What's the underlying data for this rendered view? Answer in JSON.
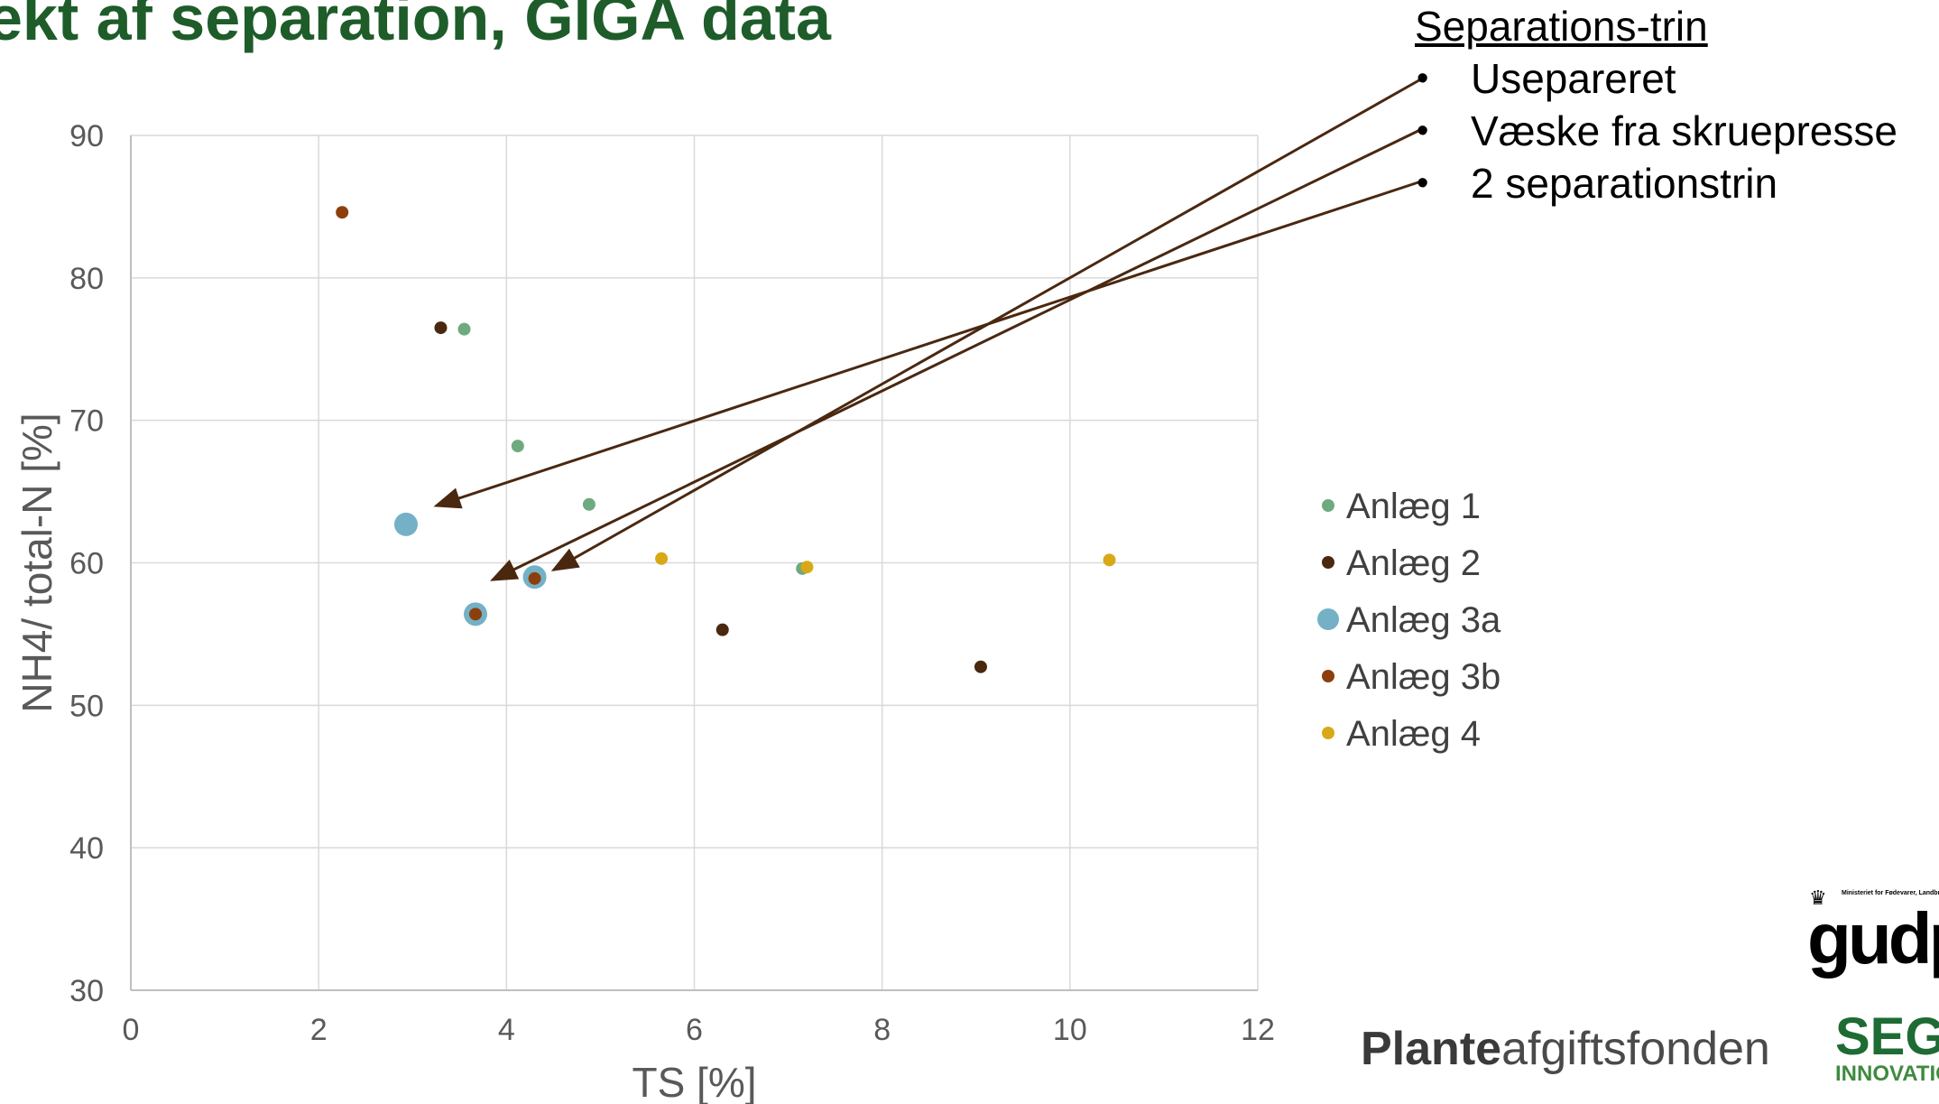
{
  "title": "ekt af separation, GIGA data",
  "separation_box": {
    "heading": "Separations-trin",
    "items": [
      {
        "label": "Usepareret"
      },
      {
        "label": "Væske fra skruepresse"
      },
      {
        "label": "2 separationstrin"
      }
    ],
    "bullet": "•"
  },
  "logos": {
    "plante_strong": "Plante",
    "plante_light": "afgiftsfonden",
    "ministry": "Ministeriet for Fødevarer, Landbrug og Fiskeri",
    "gudp": "gudp",
    "seges": "SEGES",
    "seges_sub": "INNOVATION"
  },
  "chart_data": {
    "type": "scatter",
    "xlabel": "TS [%]",
    "ylabel": "NH4/ total-N [%]",
    "xlim": [
      0,
      12
    ],
    "ylim": [
      30,
      90
    ],
    "xticks": [
      0,
      2,
      4,
      6,
      8,
      10,
      12
    ],
    "yticks": [
      30,
      40,
      50,
      60,
      70,
      80,
      90
    ],
    "grid": true,
    "legend_position": "right",
    "series": [
      {
        "name": "Anlæg 1",
        "color": "#6fa980",
        "marker": "small",
        "points": [
          [
            3.55,
            76.4
          ],
          [
            4.12,
            68.2
          ],
          [
            4.88,
            64.1
          ],
          [
            7.15,
            59.6
          ]
        ]
      },
      {
        "name": "Anlæg 2",
        "color": "#4a2810",
        "marker": "small",
        "points": [
          [
            3.3,
            76.5
          ],
          [
            6.3,
            55.3
          ],
          [
            9.05,
            52.7
          ]
        ]
      },
      {
        "name": "Anlæg 3a",
        "color": "#74b1c6",
        "marker": "large",
        "points": [
          [
            2.93,
            62.7
          ],
          [
            3.67,
            56.4
          ],
          [
            4.3,
            59.0
          ]
        ]
      },
      {
        "name": "Anlæg 3b",
        "color": "#8c3f0c",
        "marker": "small",
        "points": [
          [
            2.25,
            84.6
          ],
          [
            3.67,
            56.4
          ],
          [
            4.3,
            58.9
          ]
        ]
      },
      {
        "name": "Anlæg 4",
        "color": "#d9a816",
        "marker": "small",
        "points": [
          [
            5.65,
            60.3
          ],
          [
            7.2,
            59.7
          ],
          [
            10.42,
            60.2
          ]
        ]
      }
    ],
    "arrows": [
      {
        "from_item": "Usepareret",
        "to": [
          4.5,
          59.5
        ]
      },
      {
        "from_item": "Væske fra skruepresse",
        "to": [
          3.85,
          58.8
        ]
      },
      {
        "from_item": "2 separationstrin",
        "to": [
          3.25,
          64.0
        ]
      }
    ],
    "arrow_color": "#4a2810"
  }
}
